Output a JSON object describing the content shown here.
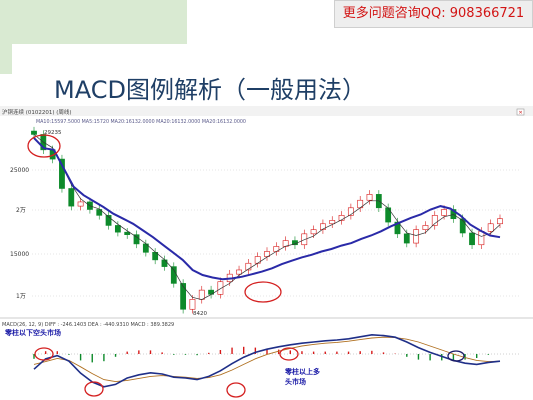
{
  "banner": {
    "text": "更多问题咨询QQ: 908366721",
    "color": "#d21414"
  },
  "slide": {
    "title": "MACD图例解析（一般用法）"
  },
  "price_chart": {
    "header": "沪铜连续 (0102201) (周线)",
    "ma_legend": "MA10:15597.5000  MA5:15720  MA20:16132.0000  MA20:16132.0000  MA20:16132.0000",
    "y_ticks": [
      "25000",
      "2万",
      "15000",
      "1万"
    ],
    "high_label": "29235",
    "low_label": "8420",
    "colors": {
      "up": "#d71818",
      "down": "#0d8a2a",
      "ma_slow": "#2a2aa8",
      "ma_fast": "#333333"
    }
  },
  "macd_panel": {
    "header": "MACD(26, 12, 9)  DIFF : -246.1403  DEA : -440.9310  MACD : 389.3829",
    "annotation_left": "零柱以下空头市场",
    "annotation_right_1": "零柱以上多",
    "annotation_right_2": "头市场"
  },
  "chart_data": {
    "type": "line",
    "series": [
      {
        "values": [
          28800,
          27600,
          27400,
          25200,
          23000,
          22000,
          21300,
          20600,
          19800,
          19200,
          18600,
          17800,
          17000,
          16100,
          15200,
          14300,
          13100,
          12500,
          12200,
          12000,
          12100,
          12300,
          12600,
          12900,
          13300,
          13800,
          14200,
          14600,
          14900,
          15300,
          15600,
          16000,
          16300,
          16800,
          17200,
          17700,
          18300,
          18800,
          19300,
          19700,
          20300,
          20700,
          20400,
          19600,
          18500,
          17800,
          17200,
          17000
        ]
      },
      {
        "values": [
          29235,
          27400,
          26300,
          22800,
          20700,
          21200,
          20300,
          19600,
          18400,
          17600,
          17300,
          16200,
          15200,
          14300,
          13500,
          11500,
          8420,
          9600,
          10700,
          10200,
          11700,
          12600,
          13100,
          13900,
          14700,
          15300,
          15900,
          16600,
          16100,
          17400,
          17900,
          18600,
          19000,
          19600,
          20500,
          21400,
          22100,
          20500,
          18800,
          17400,
          16300,
          17900,
          18400,
          19600,
          20300,
          19200,
          17500,
          16100,
          17700,
          18600,
          19200
        ]
      }
    ],
    "macd": {
      "diff": [
        -380,
        -120,
        -40,
        -180,
        -480,
        -700,
        -820,
        -760,
        -600,
        -520,
        -470,
        -500,
        -580,
        -600,
        -640,
        -560,
        -420,
        -240,
        -80,
        40,
        120,
        180,
        230,
        270,
        300,
        330,
        350,
        380,
        430,
        480,
        460,
        420,
        300,
        160,
        40,
        -60,
        -160,
        -230,
        -260,
        -210,
        -180
      ],
      "dea": [
        -260,
        -190,
        -110,
        -160,
        -320,
        -490,
        -640,
        -690,
        -660,
        -610,
        -560,
        -540,
        -560,
        -580,
        -610,
        -590,
        -520,
        -400,
        -260,
        -120,
        -10,
        70,
        140,
        200,
        240,
        270,
        290,
        320,
        360,
        400,
        420,
        410,
        370,
        300,
        200,
        100,
        0,
        -90,
        -160,
        -190,
        -180
      ],
      "hist": [
        -120,
        70,
        70,
        -20,
        -160,
        -210,
        -180,
        -70,
        60,
        90,
        90,
        40,
        -20,
        -20,
        -30,
        30,
        100,
        160,
        180,
        160,
        130,
        110,
        90,
        70,
        60,
        60,
        60,
        60,
        70,
        80,
        40,
        10,
        -70,
        -140,
        -160,
        -160,
        -160,
        -140,
        -100,
        -20,
        0
      ]
    }
  }
}
